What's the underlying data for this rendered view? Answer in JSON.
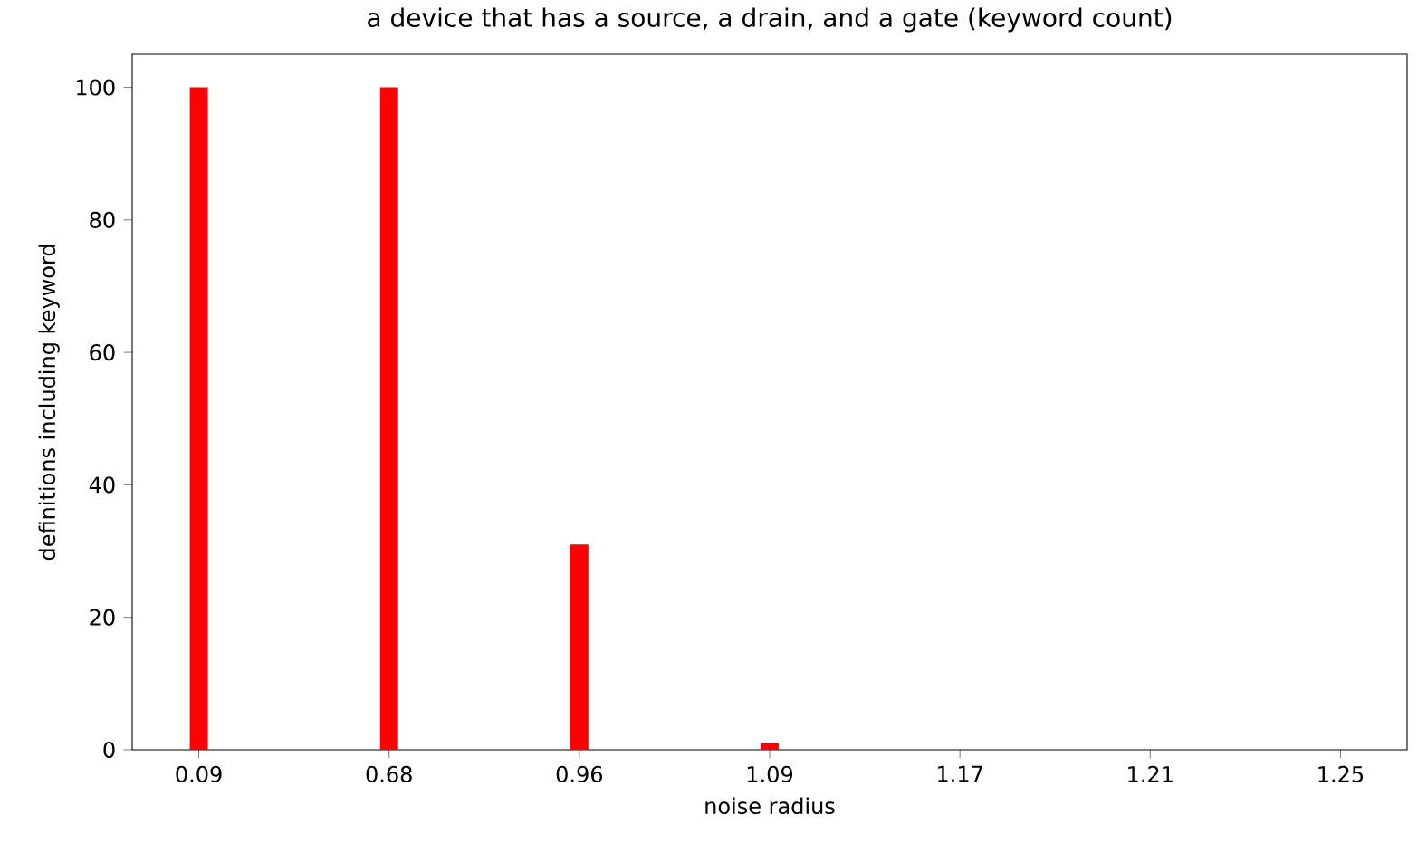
{
  "chart_data": {
    "type": "bar",
    "title": "a device that has a source, a drain, and a gate (keyword count)",
    "xlabel": "noise radius",
    "ylabel": "definitions including keyword",
    "categories": [
      "0.09",
      "0.68",
      "0.96",
      "1.09",
      "1.17",
      "1.21",
      "1.25"
    ],
    "values": [
      100,
      100,
      31,
      1,
      0,
      0,
      0
    ],
    "color": "#ff0000",
    "ylim": [
      0,
      105
    ],
    "yticks": [
      0,
      20,
      40,
      60,
      80,
      100
    ],
    "grid": false
  }
}
